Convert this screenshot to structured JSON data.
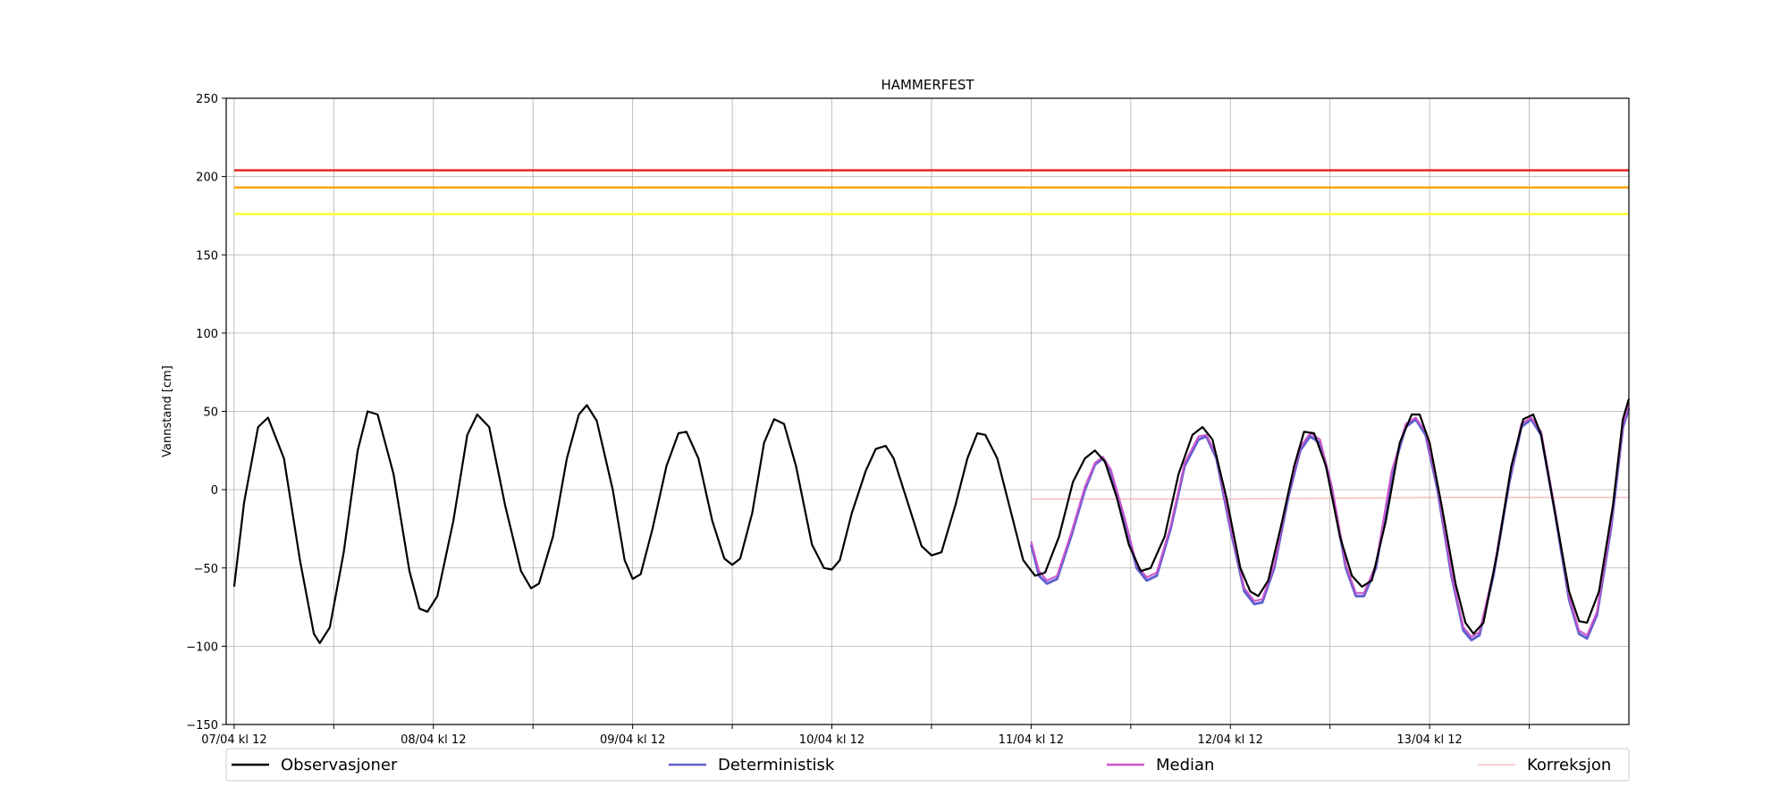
{
  "chart_data": {
    "type": "line",
    "title": "HAMMERFEST",
    "xlabel": "",
    "ylabel": "Vannstand [cm]",
    "ylim": [
      -150,
      250
    ],
    "xlim": [
      -0.04,
      7.0
    ],
    "x_unit": "days after 07/04 kl 12",
    "yticks": [
      -150,
      -100,
      -50,
      0,
      50,
      100,
      150,
      200,
      250
    ],
    "xticks": [
      {
        "x": 0,
        "label": "07/04 kl 12"
      },
      {
        "x": 0.5,
        "label": ""
      },
      {
        "x": 1,
        "label": "08/04 kl 12"
      },
      {
        "x": 1.5,
        "label": ""
      },
      {
        "x": 2,
        "label": "09/04 kl 12"
      },
      {
        "x": 2.5,
        "label": ""
      },
      {
        "x": 3,
        "label": "10/04 kl 12"
      },
      {
        "x": 3.5,
        "label": ""
      },
      {
        "x": 4,
        "label": "11/04 kl 12"
      },
      {
        "x": 4.5,
        "label": ""
      },
      {
        "x": 5,
        "label": "12/04 kl 12"
      },
      {
        "x": 5.5,
        "label": ""
      },
      {
        "x": 6,
        "label": "13/04 kl 12"
      },
      {
        "x": 6.5,
        "label": ""
      }
    ],
    "grid": true,
    "legend_position": "bottom",
    "threshold_lines": [
      {
        "value": 204,
        "color": "#e8262a"
      },
      {
        "value": 193,
        "color": "#ffa500"
      },
      {
        "value": 176,
        "color": "#ffff33"
      }
    ],
    "series": [
      {
        "name": "Observasjoner",
        "color": "#000000",
        "points": [
          [
            0.0,
            -62
          ],
          [
            0.05,
            -8
          ],
          [
            0.12,
            40
          ],
          [
            0.17,
            46
          ],
          [
            0.25,
            20
          ],
          [
            0.33,
            -45
          ],
          [
            0.4,
            -92
          ],
          [
            0.43,
            -98
          ],
          [
            0.48,
            -88
          ],
          [
            0.55,
            -40
          ],
          [
            0.62,
            25
          ],
          [
            0.67,
            50
          ],
          [
            0.72,
            48
          ],
          [
            0.8,
            10
          ],
          [
            0.88,
            -52
          ],
          [
            0.93,
            -76
          ],
          [
            0.97,
            -78
          ],
          [
            1.02,
            -68
          ],
          [
            1.1,
            -20
          ],
          [
            1.17,
            35
          ],
          [
            1.22,
            48
          ],
          [
            1.28,
            40
          ],
          [
            1.36,
            -10
          ],
          [
            1.44,
            -52
          ],
          [
            1.49,
            -63
          ],
          [
            1.53,
            -60
          ],
          [
            1.6,
            -30
          ],
          [
            1.67,
            20
          ],
          [
            1.73,
            48
          ],
          [
            1.77,
            54
          ],
          [
            1.82,
            44
          ],
          [
            1.9,
            0
          ],
          [
            1.96,
            -45
          ],
          [
            2.0,
            -57
          ],
          [
            2.04,
            -54
          ],
          [
            2.1,
            -25
          ],
          [
            2.17,
            15
          ],
          [
            2.23,
            36
          ],
          [
            2.27,
            37
          ],
          [
            2.33,
            20
          ],
          [
            2.4,
            -20
          ],
          [
            2.46,
            -44
          ],
          [
            2.5,
            -48
          ],
          [
            2.54,
            -44
          ],
          [
            2.6,
            -15
          ],
          [
            2.66,
            30
          ],
          [
            2.71,
            45
          ],
          [
            2.76,
            42
          ],
          [
            2.82,
            15
          ],
          [
            2.9,
            -35
          ],
          [
            2.96,
            -50
          ],
          [
            3.0,
            -51
          ],
          [
            3.04,
            -45
          ],
          [
            3.1,
            -15
          ],
          [
            3.17,
            12
          ],
          [
            3.22,
            26
          ],
          [
            3.27,
            28
          ],
          [
            3.31,
            20
          ],
          [
            3.38,
            -8
          ],
          [
            3.45,
            -36
          ],
          [
            3.5,
            -42
          ],
          [
            3.55,
            -40
          ],
          [
            3.62,
            -10
          ],
          [
            3.68,
            20
          ],
          [
            3.73,
            36
          ],
          [
            3.77,
            35
          ],
          [
            3.83,
            20
          ],
          [
            3.9,
            -15
          ],
          [
            3.96,
            -45
          ],
          [
            4.02,
            -55
          ],
          [
            4.07,
            -53
          ],
          [
            4.14,
            -30
          ],
          [
            4.21,
            5
          ],
          [
            4.27,
            20
          ],
          [
            4.32,
            25
          ],
          [
            4.37,
            18
          ],
          [
            4.43,
            -5
          ],
          [
            4.49,
            -35
          ],
          [
            4.55,
            -52
          ],
          [
            4.6,
            -50
          ],
          [
            4.67,
            -30
          ],
          [
            4.74,
            10
          ],
          [
            4.81,
            35
          ],
          [
            4.86,
            40
          ],
          [
            4.91,
            32
          ],
          [
            4.98,
            -5
          ],
          [
            5.05,
            -50
          ],
          [
            5.1,
            -65
          ],
          [
            5.14,
            -68
          ],
          [
            5.19,
            -58
          ],
          [
            5.26,
            -20
          ],
          [
            5.32,
            15
          ],
          [
            5.37,
            37
          ],
          [
            5.42,
            36
          ],
          [
            5.48,
            15
          ],
          [
            5.55,
            -30
          ],
          [
            5.61,
            -55
          ],
          [
            5.66,
            -62
          ],
          [
            5.71,
            -58
          ],
          [
            5.78,
            -20
          ],
          [
            5.85,
            30
          ],
          [
            5.91,
            48
          ],
          [
            5.95,
            48
          ],
          [
            6.0,
            30
          ],
          [
            6.06,
            -10
          ],
          [
            6.13,
            -60
          ],
          [
            6.18,
            -85
          ],
          [
            6.22,
            -92
          ],
          [
            6.27,
            -85
          ],
          [
            6.34,
            -40
          ],
          [
            6.41,
            15
          ],
          [
            6.47,
            45
          ],
          [
            6.52,
            48
          ],
          [
            6.56,
            35
          ],
          [
            6.63,
            -15
          ],
          [
            6.7,
            -65
          ],
          [
            6.75,
            -84
          ],
          [
            6.79,
            -85
          ],
          [
            6.85,
            -65
          ],
          [
            6.92,
            -10
          ],
          [
            6.97,
            45
          ],
          [
            7.0,
            58
          ]
        ]
      },
      {
        "name": "Deterministisk",
        "color": "#6060d0",
        "points": [
          [
            4.0,
            -35
          ],
          [
            4.04,
            -55
          ],
          [
            4.08,
            -60
          ],
          [
            4.13,
            -57
          ],
          [
            4.2,
            -30
          ],
          [
            4.27,
            0
          ],
          [
            4.32,
            16
          ],
          [
            4.36,
            20
          ],
          [
            4.4,
            12
          ],
          [
            4.47,
            -20
          ],
          [
            4.53,
            -50
          ],
          [
            4.58,
            -58
          ],
          [
            4.63,
            -55
          ],
          [
            4.7,
            -25
          ],
          [
            4.77,
            15
          ],
          [
            4.84,
            32
          ],
          [
            4.88,
            34
          ],
          [
            4.93,
            20
          ],
          [
            5.0,
            -25
          ],
          [
            5.07,
            -65
          ],
          [
            5.12,
            -73
          ],
          [
            5.16,
            -72
          ],
          [
            5.22,
            -50
          ],
          [
            5.29,
            -5
          ],
          [
            5.35,
            25
          ],
          [
            5.4,
            34
          ],
          [
            5.45,
            30
          ],
          [
            5.51,
            0
          ],
          [
            5.58,
            -50
          ],
          [
            5.63,
            -68
          ],
          [
            5.67,
            -68
          ],
          [
            5.73,
            -50
          ],
          [
            5.81,
            10
          ],
          [
            5.88,
            40
          ],
          [
            5.93,
            45
          ],
          [
            5.98,
            35
          ],
          [
            6.04,
            0
          ],
          [
            6.11,
            -55
          ],
          [
            6.17,
            -90
          ],
          [
            6.21,
            -96
          ],
          [
            6.25,
            -93
          ],
          [
            6.32,
            -55
          ],
          [
            6.4,
            5
          ],
          [
            6.46,
            40
          ],
          [
            6.51,
            45
          ],
          [
            6.56,
            35
          ],
          [
            6.63,
            -15
          ],
          [
            6.7,
            -70
          ],
          [
            6.75,
            -92
          ],
          [
            6.79,
            -95
          ],
          [
            6.84,
            -80
          ],
          [
            6.91,
            -25
          ],
          [
            6.97,
            40
          ],
          [
            7.0,
            52
          ]
        ]
      },
      {
        "name": "Median",
        "color": "#cc55cc",
        "points": [
          [
            4.0,
            -33
          ],
          [
            4.04,
            -52
          ],
          [
            4.08,
            -58
          ],
          [
            4.13,
            -55
          ],
          [
            4.2,
            -28
          ],
          [
            4.27,
            2
          ],
          [
            4.32,
            17
          ],
          [
            4.36,
            21
          ],
          [
            4.4,
            13
          ],
          [
            4.47,
            -18
          ],
          [
            4.53,
            -48
          ],
          [
            4.58,
            -56
          ],
          [
            4.63,
            -53
          ],
          [
            4.7,
            -23
          ],
          [
            4.77,
            17
          ],
          [
            4.84,
            34
          ],
          [
            4.88,
            35
          ],
          [
            4.93,
            22
          ],
          [
            5.0,
            -23
          ],
          [
            5.07,
            -63
          ],
          [
            5.12,
            -71
          ],
          [
            5.16,
            -70
          ],
          [
            5.22,
            -48
          ],
          [
            5.29,
            -3
          ],
          [
            5.35,
            27
          ],
          [
            5.4,
            36
          ],
          [
            5.45,
            32
          ],
          [
            5.51,
            2
          ],
          [
            5.58,
            -48
          ],
          [
            5.63,
            -66
          ],
          [
            5.67,
            -66
          ],
          [
            5.73,
            -48
          ],
          [
            5.81,
            12
          ],
          [
            5.88,
            42
          ],
          [
            5.93,
            46
          ],
          [
            5.98,
            37
          ],
          [
            6.04,
            2
          ],
          [
            6.11,
            -53
          ],
          [
            6.17,
            -88
          ],
          [
            6.21,
            -94
          ],
          [
            6.25,
            -91
          ],
          [
            6.32,
            -53
          ],
          [
            6.4,
            7
          ],
          [
            6.46,
            42
          ],
          [
            6.51,
            46
          ],
          [
            6.56,
            37
          ],
          [
            6.63,
            -13
          ],
          [
            6.7,
            -68
          ],
          [
            6.75,
            -90
          ],
          [
            6.79,
            -93
          ],
          [
            6.84,
            -78
          ],
          [
            6.91,
            -23
          ],
          [
            6.97,
            42
          ],
          [
            7.0,
            54
          ]
        ]
      },
      {
        "name": "Korreksjon",
        "color": "#f2b3b3",
        "points": [
          [
            4.0,
            -6
          ],
          [
            5.0,
            -6
          ],
          [
            6.0,
            -5
          ],
          [
            7.0,
            -5
          ]
        ]
      }
    ]
  }
}
